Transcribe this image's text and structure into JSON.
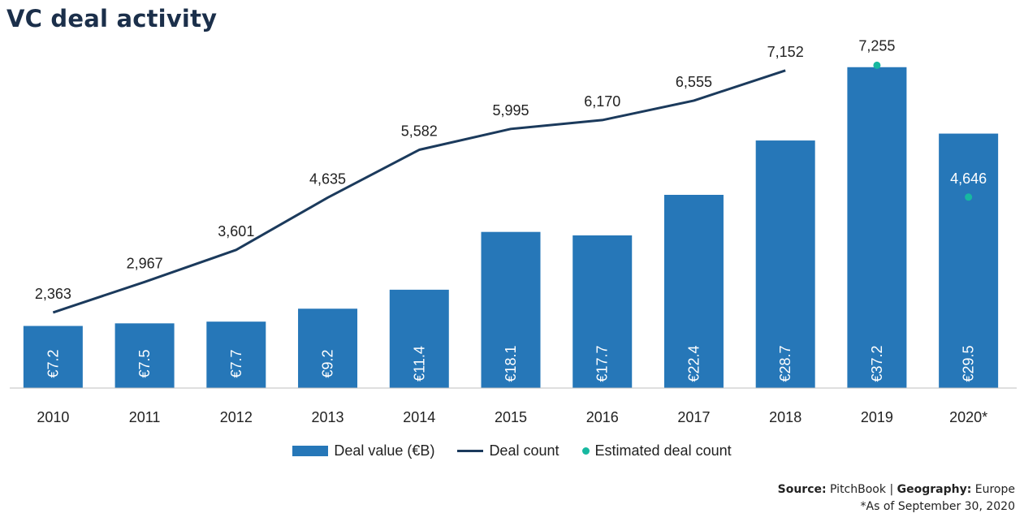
{
  "title": "VC deal activity",
  "chart_data": {
    "type": "bar",
    "categories": [
      "2010",
      "2011",
      "2012",
      "2013",
      "2014",
      "2015",
      "2016",
      "2017",
      "2018",
      "2019",
      "2020*"
    ],
    "series": [
      {
        "name": "Deal value (€B)",
        "type": "bar",
        "color": "#2677b8",
        "values": [
          7.2,
          7.5,
          7.7,
          9.2,
          11.4,
          18.1,
          17.7,
          22.4,
          28.7,
          37.2,
          29.5
        ],
        "labels": [
          "€7.2",
          "€7.5",
          "€7.7",
          "€9.2",
          "€11.4",
          "€18.1",
          "€17.7",
          "€22.4",
          "€28.7",
          "€37.2",
          "€29.5"
        ]
      },
      {
        "name": "Deal count",
        "type": "line",
        "color": "#1b3a5c",
        "values": [
          2363,
          2967,
          3601,
          4635,
          5582,
          5995,
          6170,
          6555,
          7152,
          null,
          null
        ],
        "labels": [
          "2,363",
          "2,967",
          "3,601",
          "4,635",
          "5,582",
          "5,995",
          "6,170",
          "6,555",
          "7,152",
          "",
          ""
        ]
      },
      {
        "name": "Estimated deal count",
        "type": "scatter",
        "color": "#17b8a0",
        "values": [
          null,
          null,
          null,
          null,
          null,
          null,
          null,
          null,
          null,
          7255,
          4646
        ],
        "labels": [
          "",
          "",
          "",
          "",
          "",
          "",
          "",
          "",
          "",
          "7,255",
          "4,646"
        ]
      }
    ],
    "axes": {
      "y_left_range": [
        0,
        40
      ],
      "y_right_range": [
        0,
        8000
      ],
      "gridlines": false
    },
    "legend": {
      "position": "bottom-center"
    }
  },
  "footer": {
    "source_label": "Source:",
    "source_value": "PitchBook",
    "separator": "|",
    "geo_label": "Geography:",
    "geo_value": "Europe",
    "note": "*As of September 30, 2020"
  }
}
